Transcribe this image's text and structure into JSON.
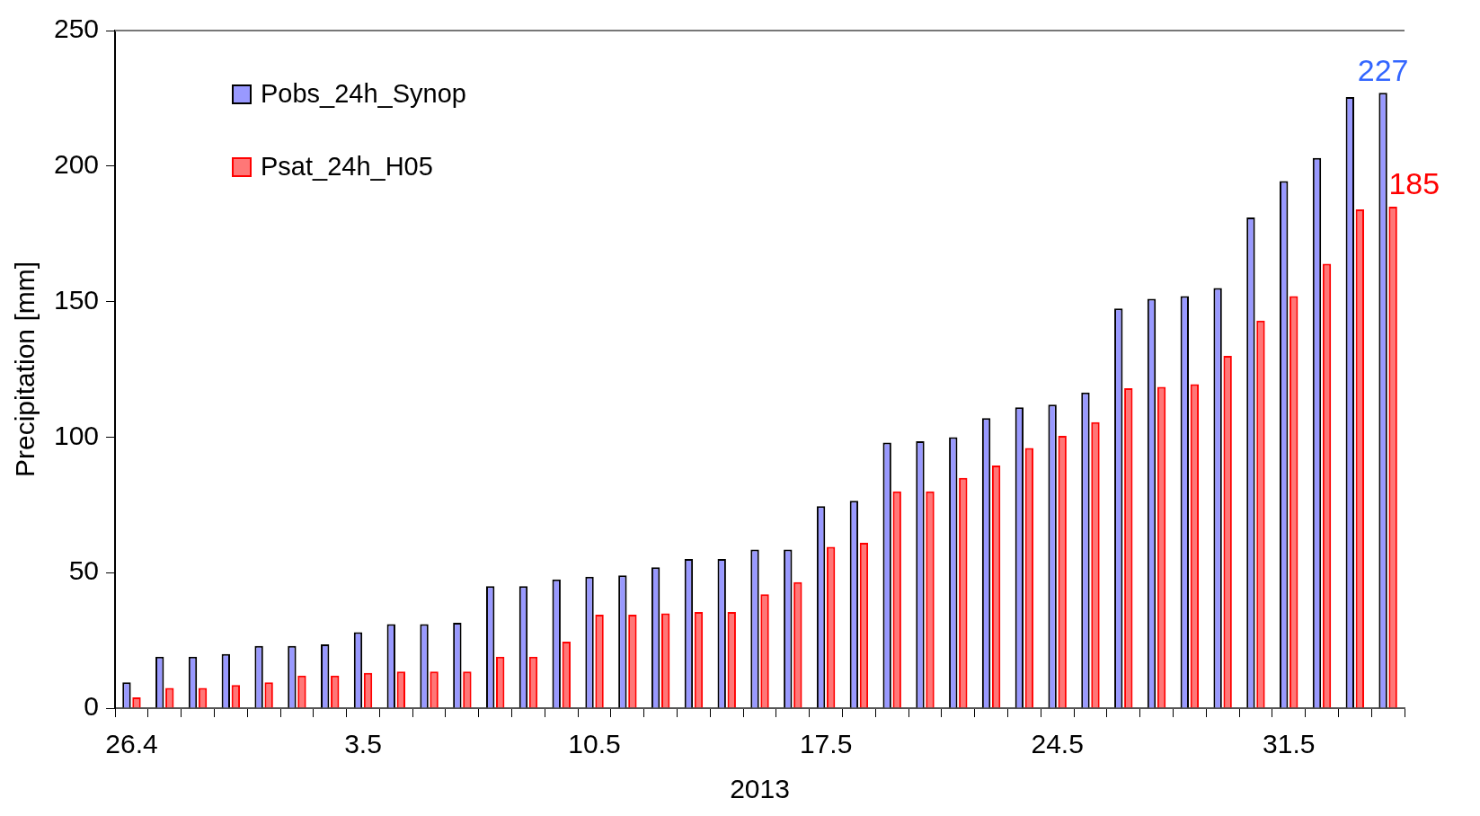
{
  "chart_data": {
    "type": "bar",
    "xlabel": "2013",
    "ylabel": "Precipitation [mm]",
    "categories": [
      "26.4",
      null,
      null,
      null,
      null,
      null,
      null,
      "3.5",
      null,
      null,
      null,
      null,
      null,
      null,
      "10.5",
      null,
      null,
      null,
      null,
      null,
      null,
      "17.5",
      null,
      null,
      null,
      null,
      null,
      null,
      "24.5",
      null,
      null,
      null,
      null,
      null,
      null,
      "31.5",
      null,
      null,
      null
    ],
    "series": [
      {
        "name": "Pobs_24h_Synop",
        "color": "#9999ff",
        "values": [
          9.5,
          19,
          19,
          20,
          23,
          23,
          23.5,
          28,
          31,
          31,
          31.5,
          45,
          45,
          47.5,
          48.5,
          49,
          52,
          55,
          55,
          58.5,
          58.5,
          74.5,
          76.5,
          98,
          98.5,
          100,
          107,
          111,
          112,
          116.5,
          147.5,
          151,
          152,
          155,
          181,
          194.5,
          203,
          225.5,
          227
        ],
        "value_labels": [
          null,
          null,
          null,
          null,
          null,
          null,
          null,
          null,
          null,
          null,
          null,
          null,
          null,
          null,
          null,
          null,
          null,
          null,
          null,
          null,
          null,
          null,
          null,
          null,
          null,
          null,
          null,
          null,
          null,
          null,
          null,
          null,
          null,
          null,
          null,
          null,
          null,
          null,
          "227"
        ]
      },
      {
        "name": "Psat_24h_H05",
        "color": "#ff0000",
        "values": [
          4,
          7.5,
          7.5,
          8.5,
          9.5,
          12,
          12,
          13,
          13.5,
          13.5,
          13.5,
          19,
          19,
          24.5,
          34.5,
          34.5,
          35,
          35.5,
          35.5,
          42,
          46.5,
          59.5,
          61,
          80,
          80,
          85,
          89.5,
          96,
          100.5,
          105.5,
          118,
          118.5,
          119.5,
          130,
          143,
          152,
          164,
          184,
          185
        ],
        "value_labels": [
          null,
          null,
          null,
          null,
          null,
          null,
          null,
          null,
          null,
          null,
          null,
          null,
          null,
          null,
          null,
          null,
          null,
          null,
          null,
          null,
          null,
          null,
          null,
          null,
          null,
          null,
          null,
          null,
          null,
          null,
          null,
          null,
          null,
          null,
          null,
          null,
          null,
          null,
          "185"
        ]
      }
    ],
    "ylim": [
      0,
      250
    ],
    "yticks": [
      0,
      50,
      100,
      150,
      200,
      250
    ],
    "grid": false,
    "legend": "top left"
  }
}
